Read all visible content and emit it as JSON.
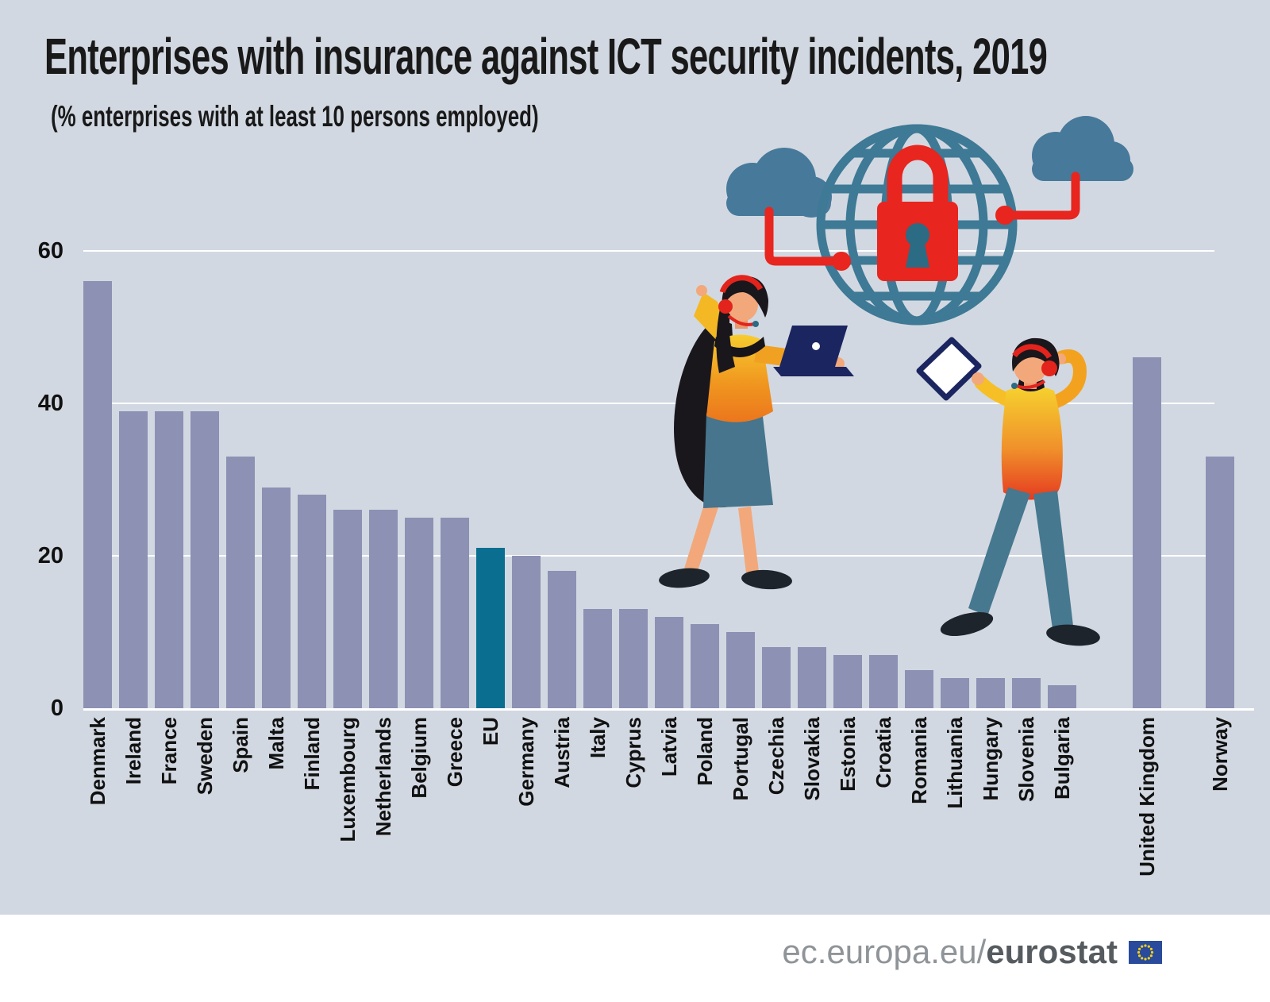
{
  "title": "Enterprises with insurance against ICT security incidents, 2019",
  "subtitle": "(% enterprises with at least 10 persons employed)",
  "chart_data": {
    "type": "bar",
    "title": "Enterprises with insurance against ICT security incidents, 2019",
    "unit_note": "% enterprises with at least 10 persons employed",
    "year": "2019",
    "ylim": [
      0,
      60
    ],
    "yticks": [
      0,
      20,
      40,
      60
    ],
    "ytick_labels": [
      "0",
      "20",
      "40",
      "60"
    ],
    "grid": true,
    "legend": "none",
    "categories": [
      "Denmark",
      "Ireland",
      "France",
      "Sweden",
      "Spain",
      "Malta",
      "Finland",
      "Luxembourg",
      "Netherlands",
      "Belgium",
      "Greece",
      "EU",
      "Germany",
      "Austria",
      "Italy",
      "Cyprus",
      "Latvia",
      "Poland",
      "Portugal",
      "Czechia",
      "Slovakia",
      "Estonia",
      "Croatia",
      "Romania",
      "Lithuania",
      "Hungary",
      "Slovenia",
      "Bulgaria",
      "United Kingdom",
      "Norway"
    ],
    "values": [
      56,
      39,
      39,
      39,
      33,
      29,
      28,
      26,
      26,
      25,
      25,
      21,
      20,
      18,
      13,
      13,
      12,
      11,
      10,
      8,
      8,
      7,
      7,
      5,
      4,
      4,
      4,
      3,
      46,
      33
    ],
    "highlight_category": "EU",
    "separated_categories": [
      "United Kingdom",
      "Norway"
    ]
  },
  "colors": {
    "background": "#d2d8e1",
    "bar": "#8d91b4",
    "eu_bar": "#0a6e90",
    "gridline": "#ffffff",
    "text": "#111111",
    "accent_red": "#e8251e",
    "globe_blue": "#3e7995",
    "cloud_blue": "#47799a",
    "flag_blue": "#2a4b9b",
    "star_yellow": "#f7d117"
  },
  "icons": [
    "globe-icon",
    "padlock-icon",
    "cloud-icon",
    "eu-flag-icon",
    "headset-icon"
  ],
  "footer": {
    "url_prefix": "ec.europa.eu/",
    "url_bold": "eurostat"
  }
}
